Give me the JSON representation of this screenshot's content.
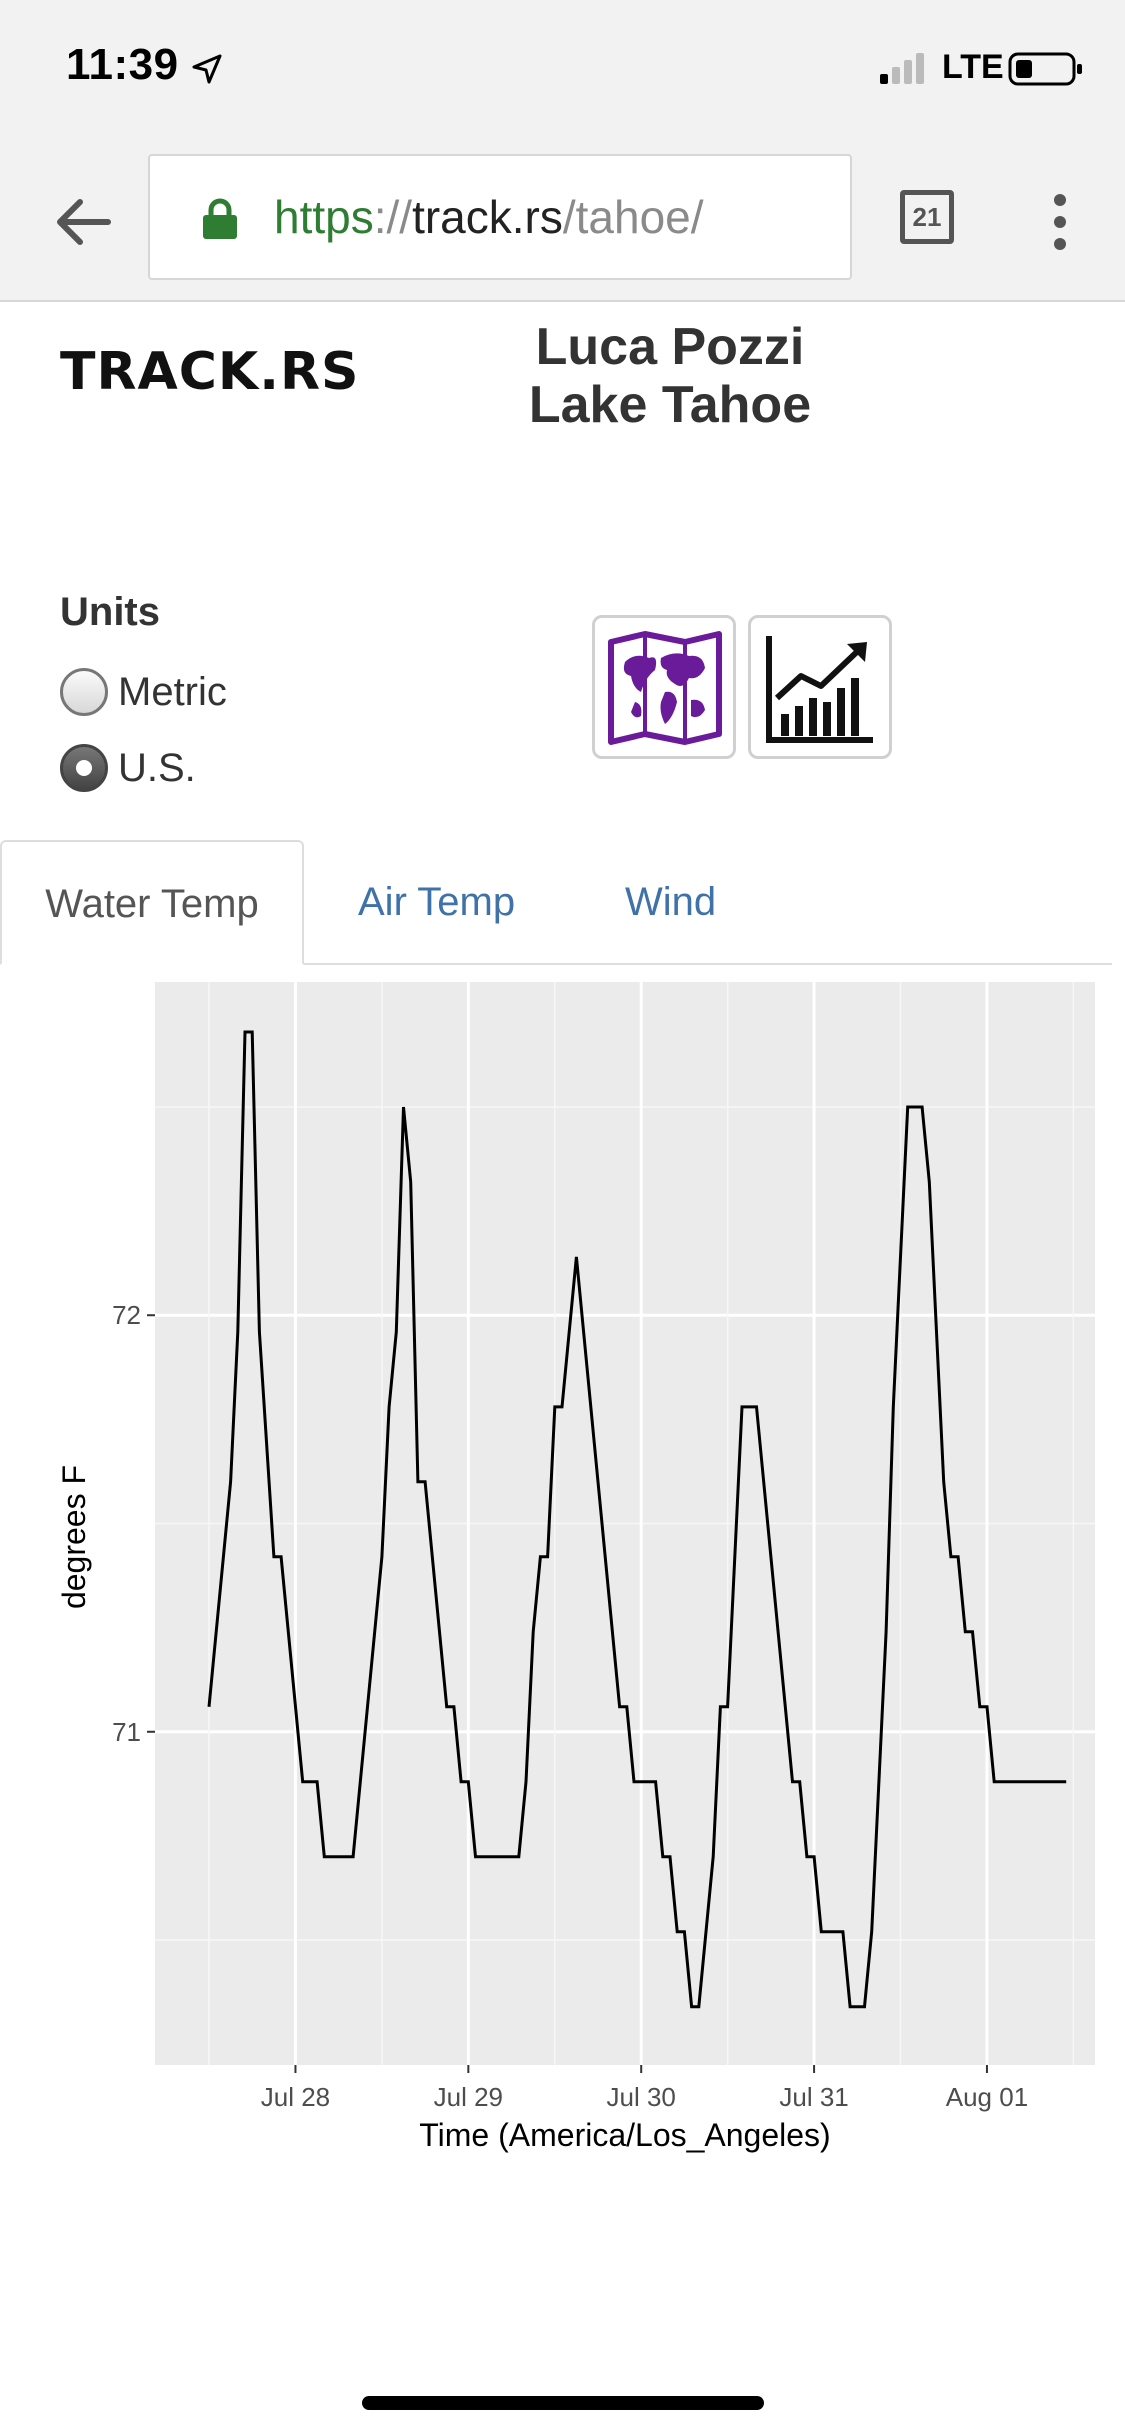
{
  "status_bar": {
    "time": "11:39",
    "carrier": "LTE"
  },
  "browser": {
    "url_scheme": "https",
    "url_sep": "://",
    "url_host": "track.rs",
    "url_path": "/tahoe/",
    "tab_count": "21"
  },
  "header": {
    "logo": "TRACK.RS",
    "title_line1": "Luca Pozzi",
    "title_line2": "Lake Tahoe"
  },
  "units": {
    "label": "Units",
    "options": [
      {
        "label": "Metric",
        "checked": false
      },
      {
        "label": "U.S.",
        "checked": true
      }
    ]
  },
  "icons": {
    "map": "world-map-icon",
    "chart": "growth-chart-icon",
    "map_color": "#6a1b9a"
  },
  "tabs": [
    {
      "label": "Water Temp",
      "active": true
    },
    {
      "label": "Air Temp",
      "active": false
    },
    {
      "label": "Wind",
      "active": false
    }
  ],
  "chart_data": {
    "type": "line",
    "xlabel": "Time (America/Los_Angeles)",
    "ylabel": "degrees F",
    "x_ticks": [
      "Jul 28",
      "Jul 29",
      "Jul 30",
      "Jul 31",
      "Aug 01"
    ],
    "y_ticks": [
      "71",
      "72"
    ],
    "ylim": [
      70.2,
      72.8
    ],
    "grid": true,
    "background": "#ebebeb",
    "series": [
      {
        "values": [
          [
            "2018-07-27 12:00",
            71.06
          ],
          [
            "2018-07-27 15:00",
            71.6
          ],
          [
            "2018-07-27 16:00",
            71.96
          ],
          [
            "2018-07-27 17:00",
            72.68
          ],
          [
            "2018-07-27 18:00",
            72.68
          ],
          [
            "2018-07-27 19:00",
            71.96
          ],
          [
            "2018-07-27 21:00",
            71.42
          ],
          [
            "2018-07-27 22:00",
            71.42
          ],
          [
            "2018-07-28 01:00",
            70.88
          ],
          [
            "2018-07-28 03:00",
            70.88
          ],
          [
            "2018-07-28 04:00",
            70.7
          ],
          [
            "2018-07-28 08:00",
            70.7
          ],
          [
            "2018-07-28 12:00",
            71.42
          ],
          [
            "2018-07-28 13:00",
            71.78
          ],
          [
            "2018-07-28 14:00",
            71.96
          ],
          [
            "2018-07-28 15:00",
            72.5
          ],
          [
            "2018-07-28 16:00",
            72.32
          ],
          [
            "2018-07-28 17:00",
            71.6
          ],
          [
            "2018-07-28 18:00",
            71.6
          ],
          [
            "2018-07-28 21:00",
            71.06
          ],
          [
            "2018-07-28 22:00",
            71.06
          ],
          [
            "2018-07-28 23:00",
            70.88
          ],
          [
            "2018-07-29 00:00",
            70.88
          ],
          [
            "2018-07-29 01:00",
            70.7
          ],
          [
            "2018-07-29 07:00",
            70.7
          ],
          [
            "2018-07-29 08:00",
            70.88
          ],
          [
            "2018-07-29 09:00",
            71.24
          ],
          [
            "2018-07-29 10:00",
            71.42
          ],
          [
            "2018-07-29 11:00",
            71.42
          ],
          [
            "2018-07-29 12:00",
            71.78
          ],
          [
            "2018-07-29 13:00",
            71.78
          ],
          [
            "2018-07-29 15:00",
            72.14
          ],
          [
            "2018-07-29 19:00",
            71.42
          ],
          [
            "2018-07-29 21:00",
            71.06
          ],
          [
            "2018-07-29 22:00",
            71.06
          ],
          [
            "2018-07-29 23:00",
            70.88
          ],
          [
            "2018-07-30 02:00",
            70.88
          ],
          [
            "2018-07-30 03:00",
            70.7
          ],
          [
            "2018-07-30 04:00",
            70.7
          ],
          [
            "2018-07-30 05:00",
            70.52
          ],
          [
            "2018-07-30 06:00",
            70.52
          ],
          [
            "2018-07-30 07:00",
            70.34
          ],
          [
            "2018-07-30 08:00",
            70.34
          ],
          [
            "2018-07-30 10:00",
            70.7
          ],
          [
            "2018-07-30 11:00",
            71.06
          ],
          [
            "2018-07-30 12:00",
            71.06
          ],
          [
            "2018-07-30 14:00",
            71.78
          ],
          [
            "2018-07-30 16:00",
            71.78
          ],
          [
            "2018-07-30 20:00",
            71.06
          ],
          [
            "2018-07-30 21:00",
            70.88
          ],
          [
            "2018-07-30 22:00",
            70.88
          ],
          [
            "2018-07-30 23:00",
            70.7
          ],
          [
            "2018-07-31 00:00",
            70.7
          ],
          [
            "2018-07-31 01:00",
            70.52
          ],
          [
            "2018-07-31 04:00",
            70.52
          ],
          [
            "2018-07-31 05:00",
            70.34
          ],
          [
            "2018-07-31 07:00",
            70.34
          ],
          [
            "2018-07-31 08:00",
            70.52
          ],
          [
            "2018-07-31 10:00",
            71.24
          ],
          [
            "2018-07-31 11:00",
            71.78
          ],
          [
            "2018-07-31 12:00",
            72.14
          ],
          [
            "2018-07-31 13:00",
            72.5
          ],
          [
            "2018-07-31 15:00",
            72.5
          ],
          [
            "2018-07-31 16:00",
            72.32
          ],
          [
            "2018-07-31 18:00",
            71.6
          ],
          [
            "2018-07-31 19:00",
            71.42
          ],
          [
            "2018-07-31 20:00",
            71.42
          ],
          [
            "2018-07-31 21:00",
            71.24
          ],
          [
            "2018-07-31 22:00",
            71.24
          ],
          [
            "2018-07-31 23:00",
            71.06
          ],
          [
            "2018-08-01 00:00",
            71.06
          ],
          [
            "2018-08-01 01:00",
            70.88
          ],
          [
            "2018-08-01 11:00",
            70.88
          ]
        ]
      }
    ]
  }
}
